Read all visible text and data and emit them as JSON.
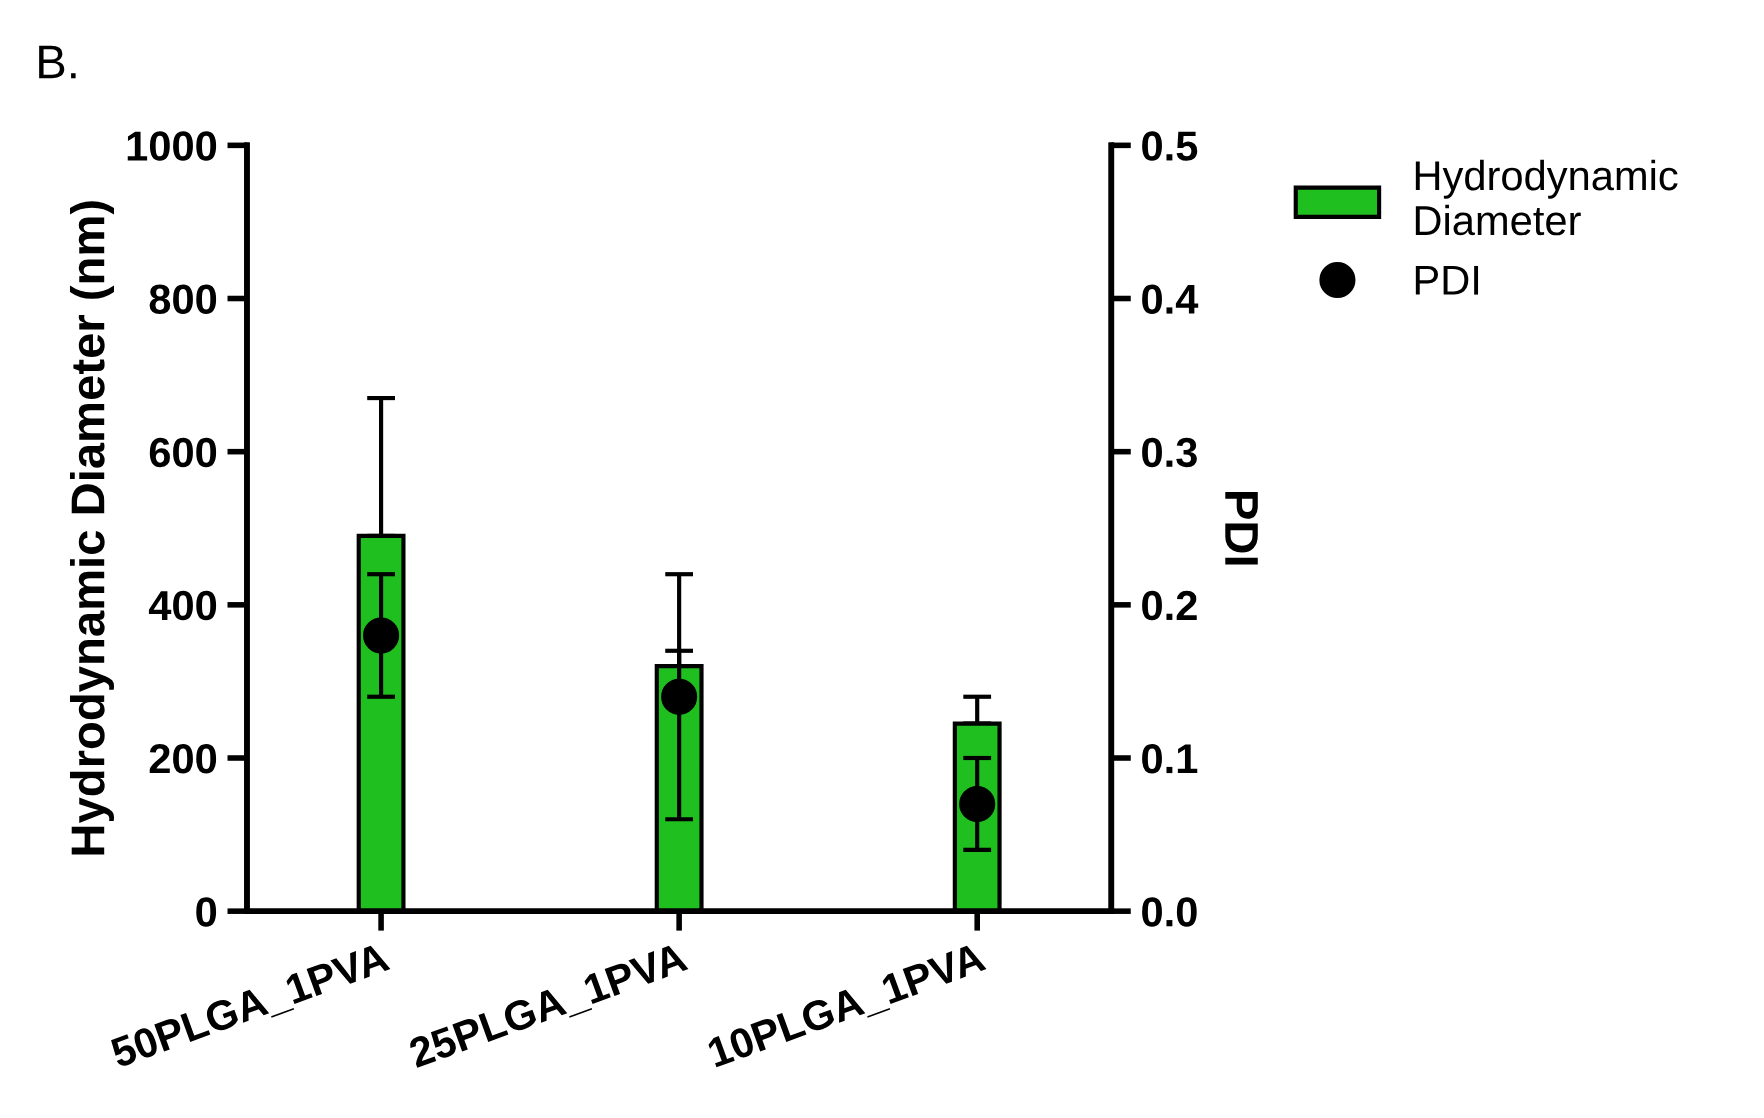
{
  "chart_data": {
    "type": "bar",
    "title": "B.",
    "ylabel": "Hydrodynamic Diameter (nm)",
    "y2label": "PDI",
    "categories": [
      "50PLGA_1PVA",
      "25PLGA_1PVA",
      "10PLGA_1PVA"
    ],
    "series": [
      {
        "name": "Hydrodynamic\nDiameter",
        "color": "#1fbf1f",
        "values": [
          490,
          320,
          245
        ],
        "errors": [
          [
            490,
            670
          ],
          [
            320,
            440
          ],
          [
            245,
            280
          ]
        ]
      },
      {
        "name": "PDI",
        "type": "scatter",
        "axis": "y2",
        "color": "#000000",
        "marker": "circle",
        "values": [
          0.18,
          0.14,
          0.07
        ],
        "errors": [
          [
            0.14,
            0.22
          ],
          [
            0.06,
            0.17
          ],
          [
            0.04,
            0.1
          ]
        ]
      }
    ],
    "ylim": [
      0,
      1000
    ],
    "yticks": [
      0,
      200,
      400,
      600,
      800,
      1000
    ],
    "y2lim": [
      0,
      0.5
    ],
    "y2ticks": [
      {
        "value": 0,
        "label": "0.0"
      },
      0.1,
      0.2,
      0.3,
      0.4,
      0.5
    ],
    "grid": false,
    "legend": "top right"
  }
}
